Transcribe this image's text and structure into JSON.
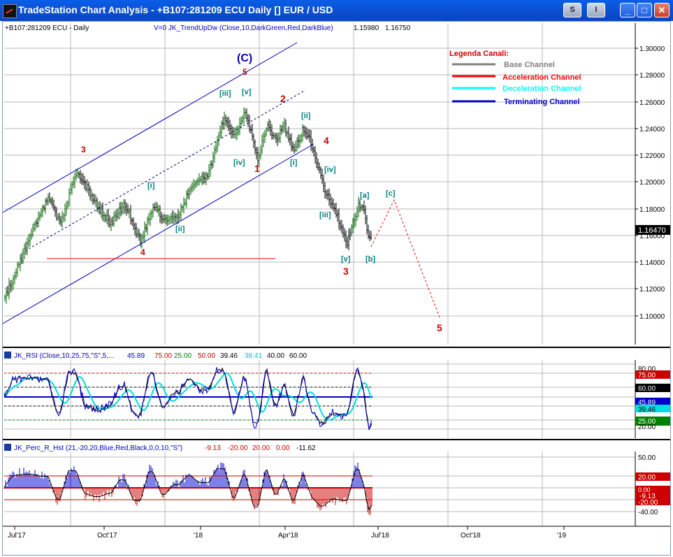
{
  "window": {
    "title": "TradeStation Chart Analysis - +B107:281209 ECU Daily [] EUR / USD",
    "buttons": [
      "S",
      "I",
      "□",
      "❐",
      "✕"
    ]
  },
  "price_pane": {
    "symbol_label": "+B107:281209 ECU - Daily",
    "indicator_label": "V=0  JK_TrendUpDw (Close,10,DarkGreen,Red,DarkBlue)",
    "indicator_values": [
      "1.15980",
      "1.16750"
    ],
    "axis_labels": [
      "1.30000",
      "1.28000",
      "1.26000",
      "1.24000",
      "1.22000",
      "1.20000",
      "1.18000",
      "1.16000",
      "1.14000",
      "1.12000",
      "1.10000"
    ],
    "last_price": "1.16470",
    "legend": {
      "title": "Legenda Canali:",
      "items": [
        {
          "label": "Base Channel",
          "color": "#808080"
        },
        {
          "label": "Acceleration Channel",
          "color": "#ff0000"
        },
        {
          "label": "Deceleration Channel",
          "color": "#00ffff"
        },
        {
          "label": "Terminating Channel",
          "color": "#0000c0"
        }
      ]
    },
    "wave_labels": {
      "C": "(C)",
      "five_top": "5",
      "three_left": "3",
      "four_left": "4",
      "two": "2",
      "one": "1",
      "four_mid": "4",
      "three_low": "3",
      "five_target": "5",
      "i_1": "[i]",
      "ii_1": "[ii]",
      "iii_top": "[iii]",
      "v_top": "[v]",
      "iv_1": "[iv]",
      "i_2": "[i]",
      "ii_2": "[ii]",
      "iv_2": "[iv]",
      "iii_2": "[iii]",
      "v_2": "[v]",
      "a": "[a]",
      "b": "[b]",
      "c": "[c]"
    }
  },
  "rsi_pane": {
    "label_prefix": "JK_RSI (Close,10,25,75,\"S\",5,...",
    "values": [
      {
        "text": "45.89",
        "color": "#0000cc"
      },
      {
        "text": "75.00",
        "color": "#cc0000"
      },
      {
        "text": "25.00",
        "color": "#008000"
      },
      {
        "text": "50.00",
        "color": "#cc0000"
      },
      {
        "text": "39.46",
        "color": "#000000"
      },
      {
        "text": "38.41",
        "color": "#00c8c8"
      },
      {
        "text": "40.00",
        "color": "#000000"
      },
      {
        "text": "60.00",
        "color": "#000000"
      }
    ],
    "axis_labels": {
      "a80": "80.00",
      "a75": "75.00",
      "a60": "60.00",
      "a45": "45.89",
      "a39": "39.46",
      "a25": "25.00",
      "a20": "20.00"
    }
  },
  "perc_pane": {
    "label_prefix": "JK_Perc_R_Hst (21,-20,20,Blue,Red,Black,0,0,10,\"S\")",
    "values": [
      {
        "text": "-9.13",
        "color": "#cc0000"
      },
      {
        "text": "-20.00",
        "color": "#cc0000"
      },
      {
        "text": "20.00",
        "color": "#cc0000"
      },
      {
        "text": "0.00",
        "color": "#cc0000"
      },
      {
        "text": "-11.62",
        "color": "#000000"
      }
    ],
    "axis_labels": {
      "a50": "50.00",
      "a20": "20.00",
      "a0": "0.00",
      "a913": "-9.13",
      "a_20": "-20.00",
      "a_40": "-40.00"
    }
  },
  "time_axis": [
    "Jul'17",
    "Oct'17",
    "'18",
    "Apr'18",
    "Jul'18",
    "Oct'18",
    "'19"
  ]
}
